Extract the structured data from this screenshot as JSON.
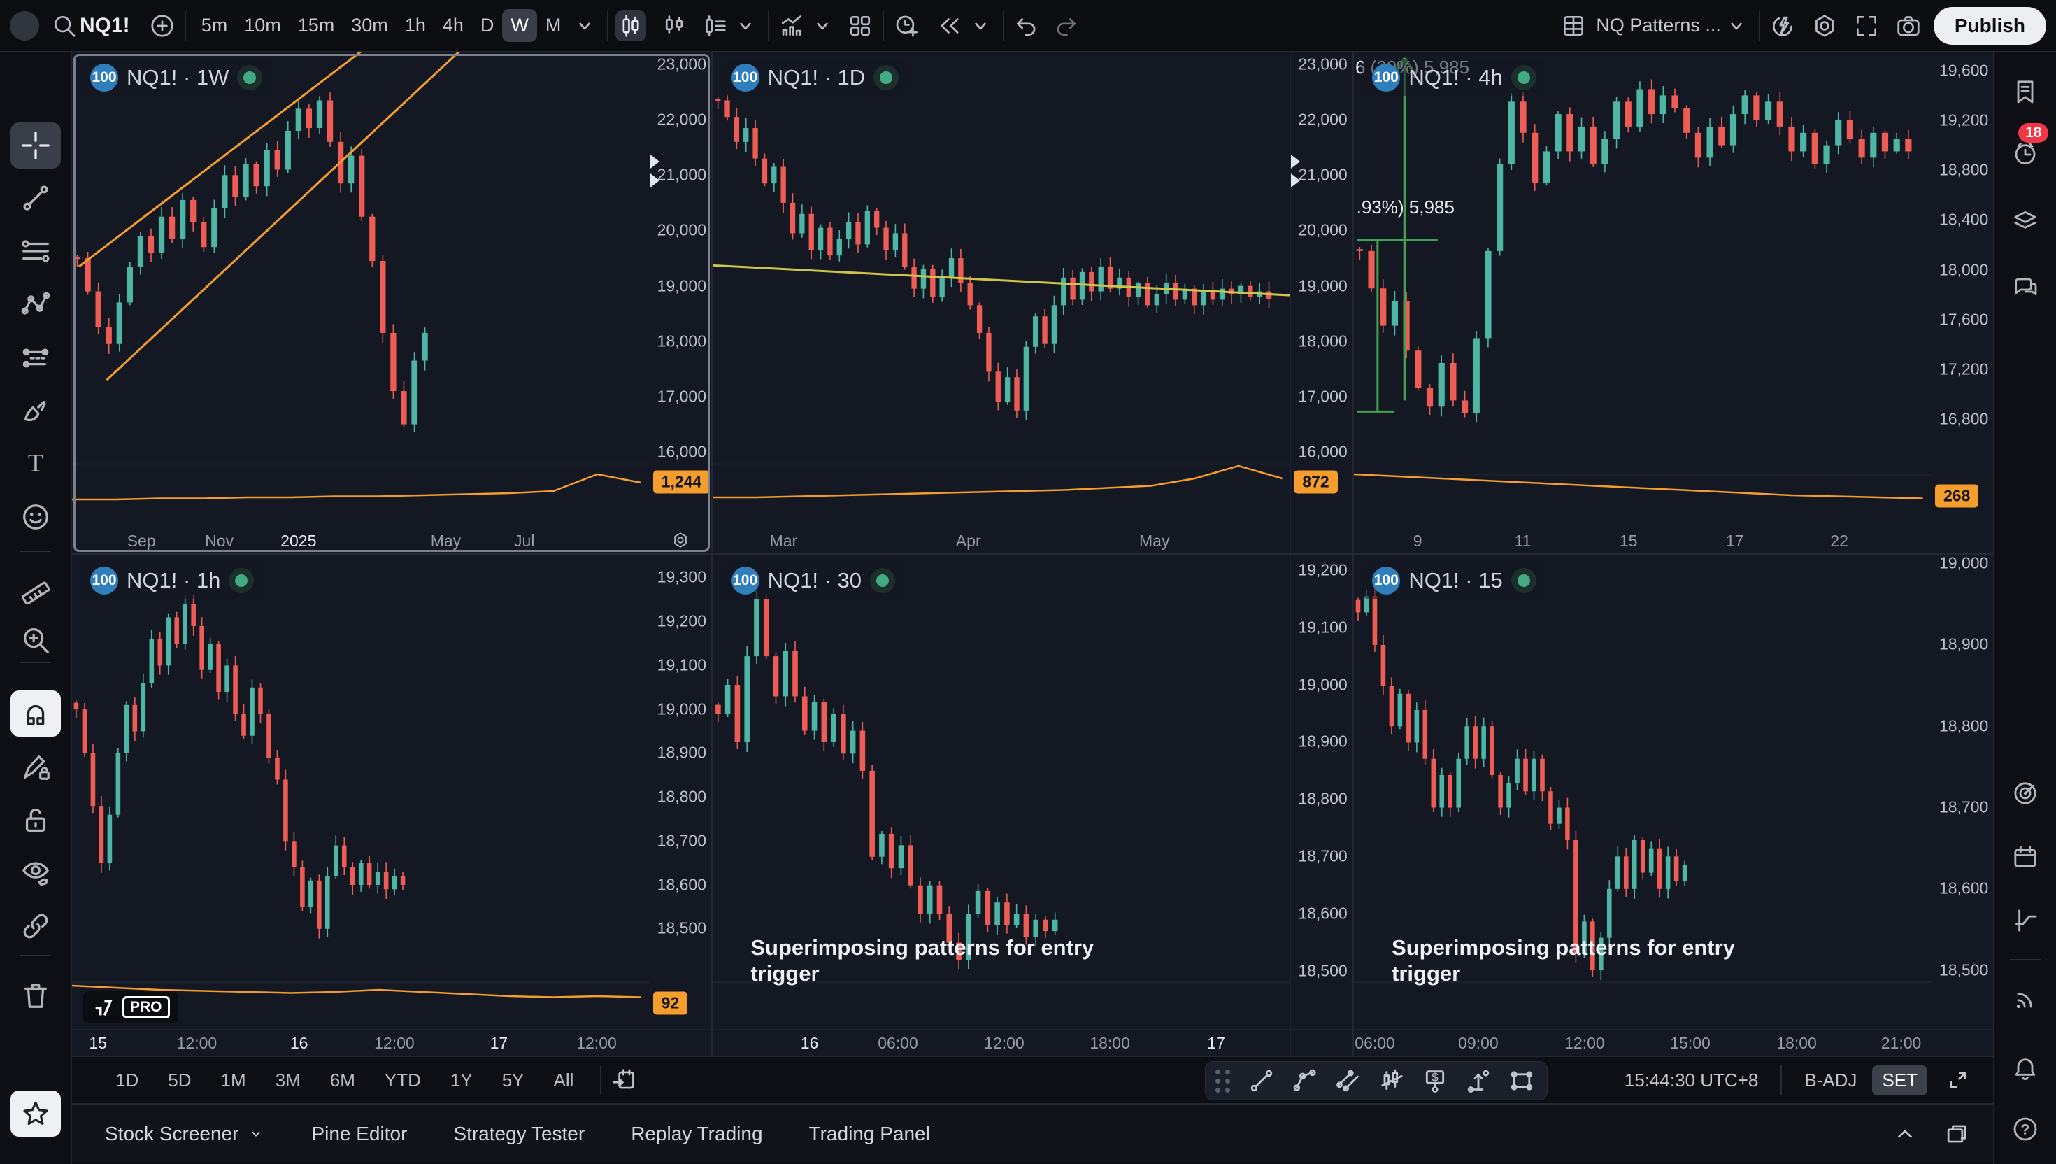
{
  "topbar": {
    "symbol": "NQ1!",
    "plus_tooltip": "add-symbol",
    "intervals": [
      "5m",
      "10m",
      "15m",
      "30m",
      "1h",
      "4h",
      "D",
      "W",
      "M"
    ],
    "active_interval": "W",
    "style_icons": [
      "candles-style",
      "hollow-candles-style",
      "candle-list-style"
    ],
    "mid_icons": [
      "indicators",
      "layout-grid"
    ],
    "replay_icons": [
      "alert-plus",
      "bar-replay"
    ],
    "history_icons": [
      "undo",
      "redo"
    ],
    "layout_name": "NQ Patterns ...",
    "right_icons": [
      "quick-flash",
      "settings-gear",
      "fullscreen",
      "camera-snapshot"
    ],
    "publish_label": "Publish"
  },
  "left_toolbar": [
    {
      "icon": "crosshair",
      "active": true
    },
    {
      "icon": "trend-line"
    },
    {
      "icon": "fib-retracement"
    },
    {
      "icon": "xabcd-pattern"
    },
    {
      "icon": "long-short-position"
    },
    {
      "icon": "brush"
    },
    {
      "icon": "text-tool"
    },
    {
      "icon": "emoji"
    },
    {
      "icon": "divider"
    },
    {
      "icon": "ruler-measure"
    },
    {
      "icon": "zoom-in"
    },
    {
      "icon": "divider"
    },
    {
      "icon": "magnet",
      "whitebox": true
    },
    {
      "icon": "drawing-mode-lock"
    },
    {
      "icon": "lock-all"
    },
    {
      "icon": "hide-drawings"
    },
    {
      "icon": "sync-drawings"
    },
    {
      "icon": "divider"
    },
    {
      "icon": "trash"
    }
  ],
  "left_toolbar_bottom": [
    {
      "icon": "favorites-star",
      "whitebox": true
    }
  ],
  "right_toolbar": [
    {
      "icon": "watchlist"
    },
    {
      "icon": "alerts-clock",
      "badge": "18"
    },
    {
      "icon": "object-layers"
    },
    {
      "icon": "chats"
    },
    {
      "icon": "screener-radar",
      "gap": true
    },
    {
      "icon": "calendar"
    },
    {
      "icon": "option-payoff"
    },
    {
      "icon": "divider"
    },
    {
      "icon": "streams-signal"
    },
    {
      "icon": "notifications-bell"
    },
    {
      "icon": "help"
    }
  ],
  "overlay_text": "Superimposing patterns for entry trigger",
  "pro_label": "PRO",
  "chart_data": [
    {
      "type": "candlestick",
      "id": "c1",
      "title": "NQ1! · 1W",
      "badge": "100",
      "selected": true,
      "gear_corner": true,
      "ylim": [
        14650,
        23215
      ],
      "ticks": [
        23000,
        22000,
        21000,
        20000,
        19000,
        18000,
        17000,
        16000
      ],
      "last_badge": "1,244",
      "badge_rel": 0.906,
      "sep_rel": 0.868,
      "fill": 0.62,
      "closes": [
        19500,
        18900,
        18250,
        17950,
        18700,
        19350,
        19900,
        19600,
        20250,
        19850,
        20550,
        20150,
        19700,
        20400,
        21000,
        20600,
        21200,
        20800,
        21450,
        21100,
        21800,
        22200,
        21850,
        22350,
        21600,
        20850,
        21350,
        20250,
        19450,
        18150,
        17100,
        16500,
        17650,
        18150
      ],
      "time_labels": [
        {
          "t": "Sep",
          "x": 0.12
        },
        {
          "t": "Nov",
          "x": 0.255
        },
        {
          "t": "2025",
          "x": 0.392,
          "strong": true
        },
        {
          "t": "May",
          "x": 0.647
        },
        {
          "t": "Jul",
          "x": 0.783
        }
      ],
      "lines": [
        {
          "x1": 0.012,
          "p1": 19350,
          "x2": 0.5,
          "p2": 23230,
          "c": "#f59e2d",
          "w": 3
        },
        {
          "x1": 0.06,
          "p1": 17300,
          "x2": 0.67,
          "p2": 23230,
          "c": "#f59e2d",
          "w": 3
        }
      ],
      "axis_arrows": [
        21250,
        20900
      ],
      "spark": [
        6,
        6,
        7,
        7,
        8,
        8,
        9,
        9,
        10,
        11,
        12,
        14,
        30,
        22
      ]
    },
    {
      "type": "candlestick",
      "id": "c2",
      "title": "NQ1! · 1D",
      "badge": "100",
      "ylim": [
        14650,
        23215
      ],
      "ticks": [
        23000,
        22000,
        21000,
        20000,
        19000,
        18000,
        17000,
        16000
      ],
      "last_badge": "872",
      "badge_rel": 0.906,
      "sep_rel": 0.868,
      "fill": 0.97,
      "closes": [
        22350,
        22050,
        21600,
        21850,
        21300,
        20850,
        21150,
        20500,
        19950,
        20300,
        19650,
        20050,
        19550,
        19850,
        20150,
        19750,
        20350,
        20050,
        19650,
        19950,
        19350,
        18950,
        19300,
        18800,
        19150,
        19500,
        19050,
        18650,
        18150,
        17450,
        16900,
        17350,
        16750,
        17900,
        18450,
        17950,
        18650,
        19150,
        18750,
        19250,
        18900,
        19350,
        18950,
        19150,
        18800,
        19050,
        18650,
        18850,
        19050,
        18750,
        18950,
        18650,
        18900,
        18750,
        18950,
        18850,
        19000,
        18800,
        18900,
        18770
      ],
      "time_labels": [
        {
          "t": "Mar",
          "x": 0.122
        },
        {
          "t": "Apr",
          "x": 0.442
        },
        {
          "t": "May",
          "x": 0.764
        }
      ],
      "lines": [
        {
          "x1": 0,
          "p1": 19370,
          "x2": 1,
          "p2": 18830,
          "c": "#cfc54a",
          "w": 3
        }
      ],
      "axis_arrows": [
        21250,
        20900
      ],
      "spark": [
        8,
        8,
        9,
        10,
        11,
        12,
        13,
        14,
        15,
        17,
        19,
        26,
        38,
        26
      ]
    },
    {
      "type": "candlestick",
      "id": "c3",
      "title": "NQ1! · 4h",
      "badge": "100",
      "ylim": [
        15935,
        19745
      ],
      "ticks": [
        19600,
        19200,
        18800,
        18400,
        18000,
        17600,
        17200,
        16800
      ],
      "last_badge": "268",
      "badge_rel": 0.935,
      "sep_rel": 0.89,
      "fill": 0.97,
      "closes": [
        18150,
        17850,
        17550,
        17750,
        17350,
        17050,
        16900,
        17250,
        16950,
        16850,
        17450,
        18150,
        18850,
        19350,
        19100,
        18700,
        18950,
        19250,
        18950,
        19150,
        18850,
        19050,
        19350,
        19150,
        19450,
        19250,
        19400,
        19300,
        19100,
        18900,
        19150,
        19000,
        19250,
        19400,
        19200,
        19350,
        19150,
        18950,
        19100,
        18850,
        19000,
        19200,
        19050,
        18900,
        19100,
        18950,
        19050,
        18950
      ],
      "time_labels": [
        {
          "t": "9",
          "x": 0.11
        },
        {
          "t": "11",
          "x": 0.292
        },
        {
          "t": "15",
          "x": 0.475
        },
        {
          "t": "17",
          "x": 0.659
        },
        {
          "t": "22",
          "x": 0.84
        }
      ],
      "lines": [
        {
          "x1": 0.088,
          "p1": 19700,
          "x2": 0.088,
          "p2": 16950,
          "c": "#43a24f",
          "w": 4,
          "arrow_top": true
        },
        {
          "x1": 0.041,
          "p1": 18240,
          "x2": 0.041,
          "p2": 16860,
          "c": "#43a24f",
          "w": 3
        },
        {
          "x1": 0.005,
          "p1": 18240,
          "x2": 0.145,
          "p2": 18240,
          "c": "#43a24f",
          "w": 3
        },
        {
          "x1": 0.005,
          "p1": 16860,
          "x2": 0.07,
          "p2": 16860,
          "c": "#43a24f",
          "w": 3
        }
      ],
      "fragments": [
        {
          "text": "6",
          "x": 0.002,
          "p": 19620
        },
        {
          "text": "(20%) 5,985",
          "x": 0.028,
          "p": 19620
        },
        {
          "text": ".93%) 5,985",
          "x": 0.004,
          "p": 18500
        }
      ],
      "spark": [
        30,
        28,
        26,
        24,
        22,
        20,
        18,
        16,
        14,
        12,
        10,
        9,
        8,
        7
      ]
    },
    {
      "type": "candlestick",
      "id": "c4",
      "title": "NQ1! · 1h",
      "badge": "100",
      "pro": true,
      "ylim": [
        18270,
        19351
      ],
      "ticks": [
        19300,
        19200,
        19100,
        19000,
        18900,
        18800,
        18700,
        18600,
        18500
      ],
      "last_badge": "92",
      "badge_rel": 0.945,
      "sep_rel": 0.9,
      "fill": 0.58,
      "closes": [
        19000,
        18900,
        18780,
        18650,
        18760,
        18900,
        19010,
        18950,
        19060,
        19160,
        19100,
        19210,
        19150,
        19240,
        19190,
        19090,
        19150,
        19040,
        19100,
        18990,
        18940,
        19050,
        18990,
        18890,
        18840,
        18700,
        18640,
        18550,
        18610,
        18500,
        18620,
        18690,
        18640,
        18600,
        18650,
        18600,
        18630,
        18590,
        18620,
        18600
      ],
      "time_labels": [
        {
          "t": "15",
          "x": 0.045,
          "strong": true
        },
        {
          "t": "12:00",
          "x": 0.216
        },
        {
          "t": "16",
          "x": 0.393,
          "strong": true
        },
        {
          "t": "12:00",
          "x": 0.558
        },
        {
          "t": "17",
          "x": 0.739,
          "strong": true
        },
        {
          "t": "12:00",
          "x": 0.908
        }
      ],
      "spark": [
        22,
        20,
        18,
        17,
        16,
        15,
        16,
        18,
        16,
        14,
        12,
        11,
        12,
        11
      ]
    },
    {
      "type": "candlestick",
      "id": "c5",
      "title": "NQ1! · 30",
      "badge": "100",
      "overlay": true,
      "ylim": [
        18398,
        19226
      ],
      "ticks": [
        19200,
        19100,
        19000,
        18900,
        18800,
        18700,
        18600,
        18500
      ],
      "sep_rel": 0.9,
      "fill": 0.6,
      "closes": [
        18950,
        19000,
        18900,
        19050,
        19150,
        19050,
        18980,
        19060,
        18980,
        18920,
        18970,
        18900,
        18950,
        18880,
        18920,
        18850,
        18700,
        18740,
        18680,
        18720,
        18650,
        18600,
        18650,
        18600,
        18550,
        18520,
        18600,
        18640,
        18580,
        18620,
        18580,
        18600,
        18560,
        18590,
        18570,
        18590
      ],
      "time_labels": [
        {
          "t": "16",
          "x": 0.167,
          "strong": true
        },
        {
          "t": "06:00",
          "x": 0.32
        },
        {
          "t": "12:00",
          "x": 0.504
        },
        {
          "t": "18:00",
          "x": 0.687
        },
        {
          "t": "17",
          "x": 0.871,
          "strong": true
        }
      ]
    },
    {
      "type": "candlestick",
      "id": "c6",
      "title": "NQ1! · 15",
      "badge": "100",
      "overlay": true,
      "ylim": [
        18427,
        19010
      ],
      "ticks": [
        19000,
        18900,
        18800,
        18700,
        18600,
        18500
      ],
      "sep_rel": 0.9,
      "fill": 0.58,
      "closes": [
        18940,
        18960,
        18900,
        18850,
        18800,
        18840,
        18780,
        18820,
        18760,
        18700,
        18740,
        18700,
        18760,
        18800,
        18760,
        18800,
        18740,
        18700,
        18730,
        18760,
        18720,
        18760,
        18720,
        18680,
        18700,
        18660,
        18520,
        18560,
        18500,
        18540,
        18600,
        18640,
        18600,
        18660,
        18620,
        18650,
        18600,
        18640,
        18610,
        18630
      ],
      "time_labels": [
        {
          "t": "06:00",
          "x": 0.036
        },
        {
          "t": "09:00",
          "x": 0.215
        },
        {
          "t": "12:00",
          "x": 0.399
        },
        {
          "t": "15:00",
          "x": 0.582
        },
        {
          "t": "18:00",
          "x": 0.766
        },
        {
          "t": "21:00",
          "x": 0.947
        }
      ]
    }
  ],
  "bottom": {
    "ranges": [
      "1D",
      "5D",
      "1M",
      "3M",
      "6M",
      "YTD",
      "1Y",
      "5Y",
      "All"
    ],
    "draw_tools": [
      "tool-trend",
      "tool-path",
      "tool-channel",
      "tool-bars-pattern",
      "tool-price-label",
      "tool-price-range",
      "tool-rectangle"
    ],
    "time": "15:44:30 UTC+8",
    "b_adj": "B-ADJ",
    "set_label": "SET"
  },
  "tabs": [
    "Stock Screener",
    "Pine Editor",
    "Strategy Tester",
    "Replay Trading",
    "Trading Panel"
  ],
  "colors": {
    "chart_bg": "#141823",
    "up": "#4eb6a4",
    "down": "#ee5c53",
    "orange": "#f59e2d",
    "yellow": "#cfc54a",
    "draw_green": "#43a24f",
    "badge_blue": "#2f7fbc",
    "dot_green": "#43ab84",
    "alert_red": "#f23645",
    "text": "#d3d6de",
    "dim_text": "#959ba8"
  }
}
